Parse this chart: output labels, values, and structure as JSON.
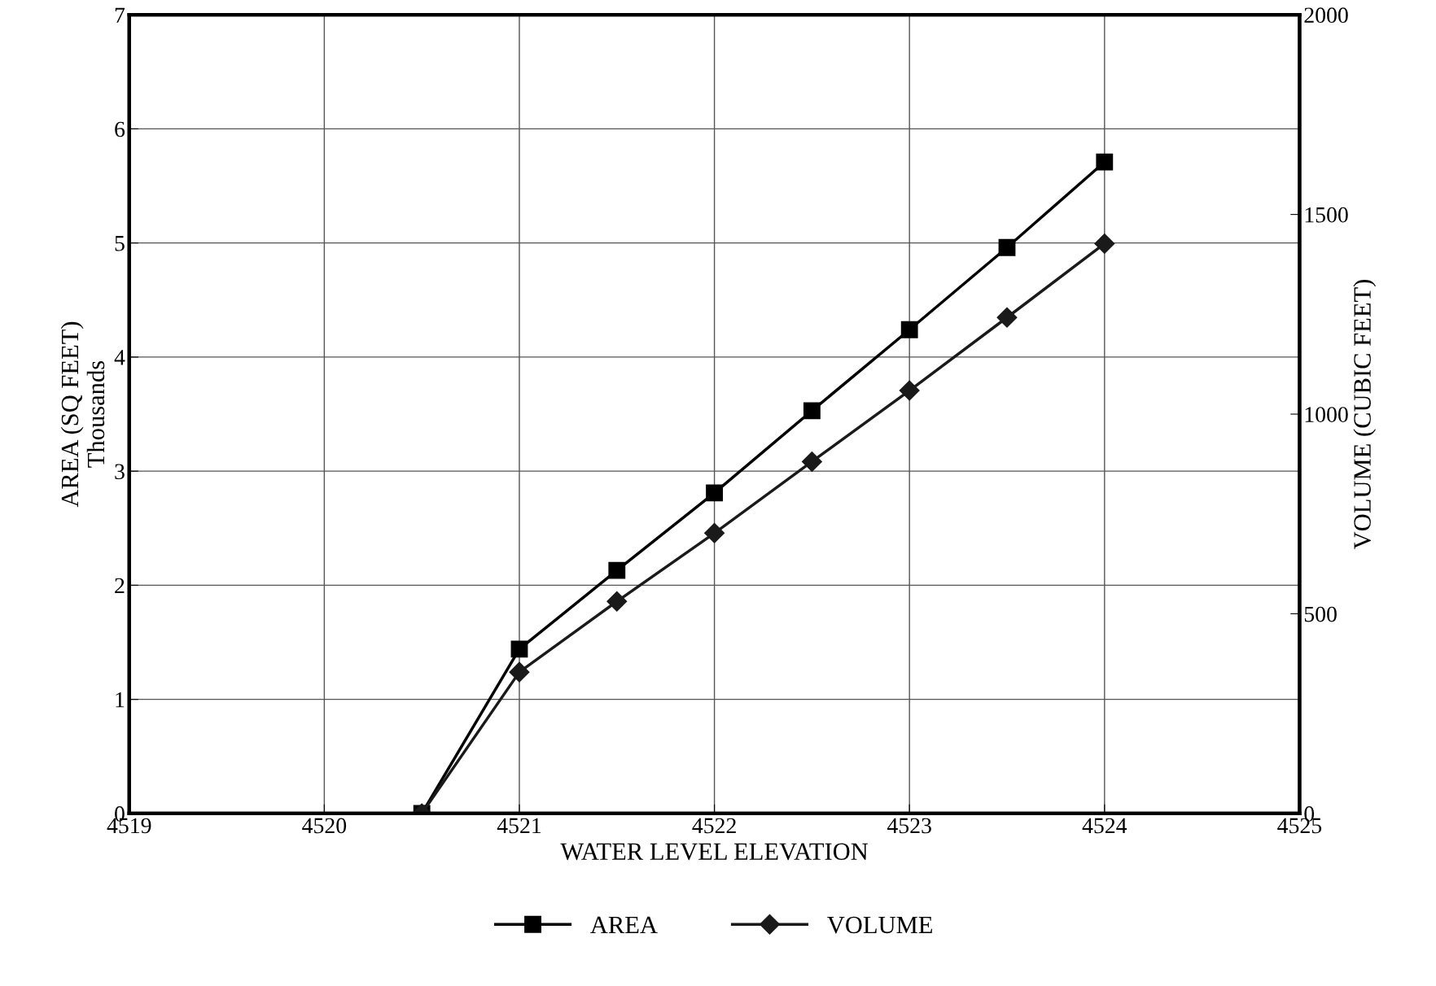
{
  "chart_data": {
    "type": "line",
    "xlabel": "WATER LEVEL ELEVATION",
    "ylabel": "AREA (SQ FEET)\nThousands",
    "y2label": "VOLUME (CUBIC FEET)",
    "x": [
      4520.5,
      4521,
      4521.5,
      4522,
      4522.5,
      4523,
      4523.5,
      4524
    ],
    "series": [
      {
        "name": "AREA",
        "color": "#000000",
        "marker": "square",
        "values": [
          0,
          1.44,
          2.13,
          2.81,
          3.53,
          4.24,
          4.96,
          5.71
        ]
      },
      {
        "name": "VOLUME",
        "color": "#1a1a1a",
        "marker": "diamond",
        "axis": "y2",
        "values": [
          0,
          354,
          531,
          702,
          881,
          1059,
          1242,
          1427
        ]
      }
    ],
    "xlim": [
      4519,
      4525
    ],
    "xticks": [
      4519,
      4520,
      4521,
      4522,
      4523,
      4524,
      4525
    ],
    "ylim": [
      0,
      7
    ],
    "yticks": [
      0,
      1,
      2,
      3,
      4,
      5,
      6,
      7
    ],
    "y2lim": [
      0,
      2000
    ],
    "y2ticks": [
      0,
      500,
      1000,
      1500,
      2000
    ],
    "grid": true,
    "legend": "bottom",
    "line_style": "solid"
  }
}
